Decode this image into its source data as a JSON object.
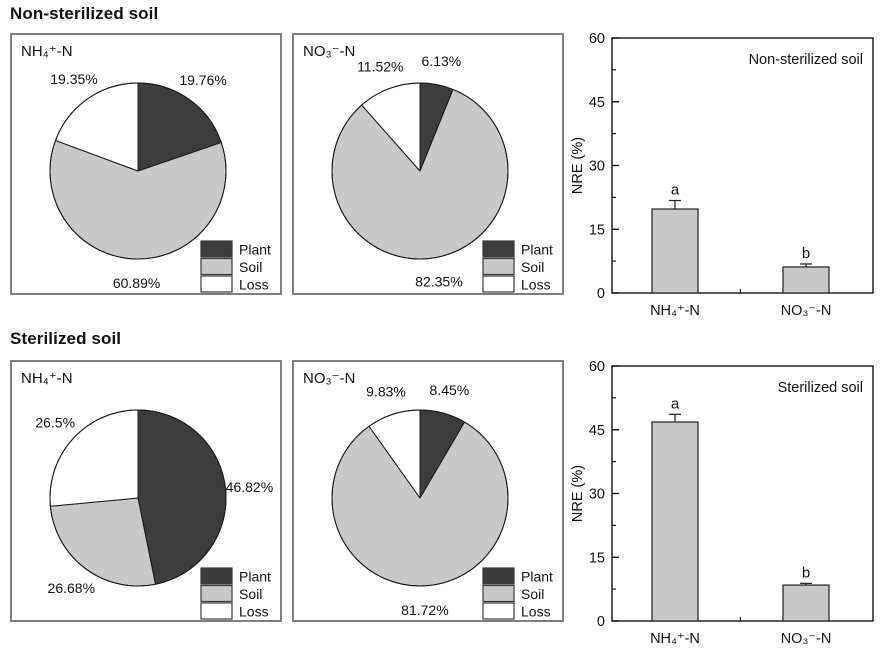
{
  "figure": {
    "sections": [
      {
        "heading": "Non-sterilized soil"
      },
      {
        "heading": "Sterilized soil"
      }
    ],
    "legend": [
      {
        "label": "Plant",
        "color": "#3d3d3d"
      },
      {
        "label": "Soil",
        "color": "#c8c8c8"
      },
      {
        "label": "Loss",
        "color": "#ffffff"
      }
    ]
  },
  "colors": {
    "background": "#ffffff",
    "panel_border": "#7f7f7f",
    "outline": "#1a1a1a",
    "bar_fill": "#c8c8c8",
    "axis": "#000000"
  },
  "chart_data": [
    {
      "id": "ns-nh4-pie",
      "type": "pie",
      "section": "Non-sterilized soil",
      "panel_label": "NH₄⁺-N",
      "labels": [
        "Plant",
        "Soil",
        "Loss"
      ],
      "values": [
        19.76,
        60.89,
        19.35
      ],
      "value_labels": [
        "19.76%",
        "60.89%",
        "19.35%"
      ],
      "colors": [
        "#3d3d3d",
        "#c8c8c8",
        "#ffffff"
      ],
      "start_angle_deg": 0,
      "direction": "clockwise",
      "legend_position": "bottom-right"
    },
    {
      "id": "ns-no3-pie",
      "type": "pie",
      "section": "Non-sterilized soil",
      "panel_label": "NO₃⁻-N",
      "labels": [
        "Plant",
        "Soil",
        "Loss"
      ],
      "values": [
        6.13,
        82.35,
        11.52
      ],
      "value_labels": [
        "6.13%",
        "82.35%",
        "11.52%"
      ],
      "colors": [
        "#3d3d3d",
        "#c8c8c8",
        "#ffffff"
      ],
      "start_angle_deg": 0,
      "direction": "clockwise",
      "legend_position": "bottom-right"
    },
    {
      "id": "ns-bar",
      "type": "bar",
      "title": "Non-sterilized soil",
      "xlabel": "",
      "ylabel": "NRE (%)",
      "ylim": [
        0,
        60
      ],
      "yticks": [
        0,
        15,
        30,
        45,
        60
      ],
      "minor_ytick_step": 7.5,
      "categories": [
        "NH₄⁺-N",
        "NO₃⁻-N"
      ],
      "values": [
        19.76,
        6.13
      ],
      "errors": [
        2.0,
        0.7
      ],
      "sig_letters": [
        "a",
        "b"
      ],
      "bar_fill": "#c8c8c8",
      "grid": "off",
      "legend_position": "none"
    },
    {
      "id": "s-nh4-pie",
      "type": "pie",
      "section": "Sterilized soil",
      "panel_label": "NH₄⁺-N",
      "labels": [
        "Plant",
        "Soil",
        "Loss"
      ],
      "values": [
        46.82,
        26.68,
        26.5
      ],
      "value_labels": [
        "46.82%",
        "26.68%",
        "26.5%"
      ],
      "colors": [
        "#3d3d3d",
        "#c8c8c8",
        "#ffffff"
      ],
      "start_angle_deg": 0,
      "direction": "clockwise",
      "legend_position": "bottom-right"
    },
    {
      "id": "s-no3-pie",
      "type": "pie",
      "section": "Sterilized soil",
      "panel_label": "NO₃⁻-N",
      "labels": [
        "Plant",
        "Soil",
        "Loss"
      ],
      "values": [
        8.45,
        81.72,
        9.83
      ],
      "value_labels": [
        "8.45%",
        "81.72%",
        "9.83%"
      ],
      "colors": [
        "#3d3d3d",
        "#c8c8c8",
        "#ffffff"
      ],
      "start_angle_deg": 0,
      "direction": "clockwise",
      "legend_position": "bottom-right"
    },
    {
      "id": "s-bar",
      "type": "bar",
      "title": "Sterilized soil",
      "xlabel": "",
      "ylabel": "NRE (%)",
      "ylim": [
        0,
        60
      ],
      "yticks": [
        0,
        15,
        30,
        45,
        60
      ],
      "minor_ytick_step": 7.5,
      "categories": [
        "NH₄⁺-N",
        "NO₃⁻-N"
      ],
      "values": [
        46.82,
        8.45
      ],
      "errors": [
        1.8,
        0.4
      ],
      "sig_letters": [
        "a",
        "b"
      ],
      "bar_fill": "#c8c8c8",
      "grid": "off",
      "legend_position": "none"
    }
  ]
}
